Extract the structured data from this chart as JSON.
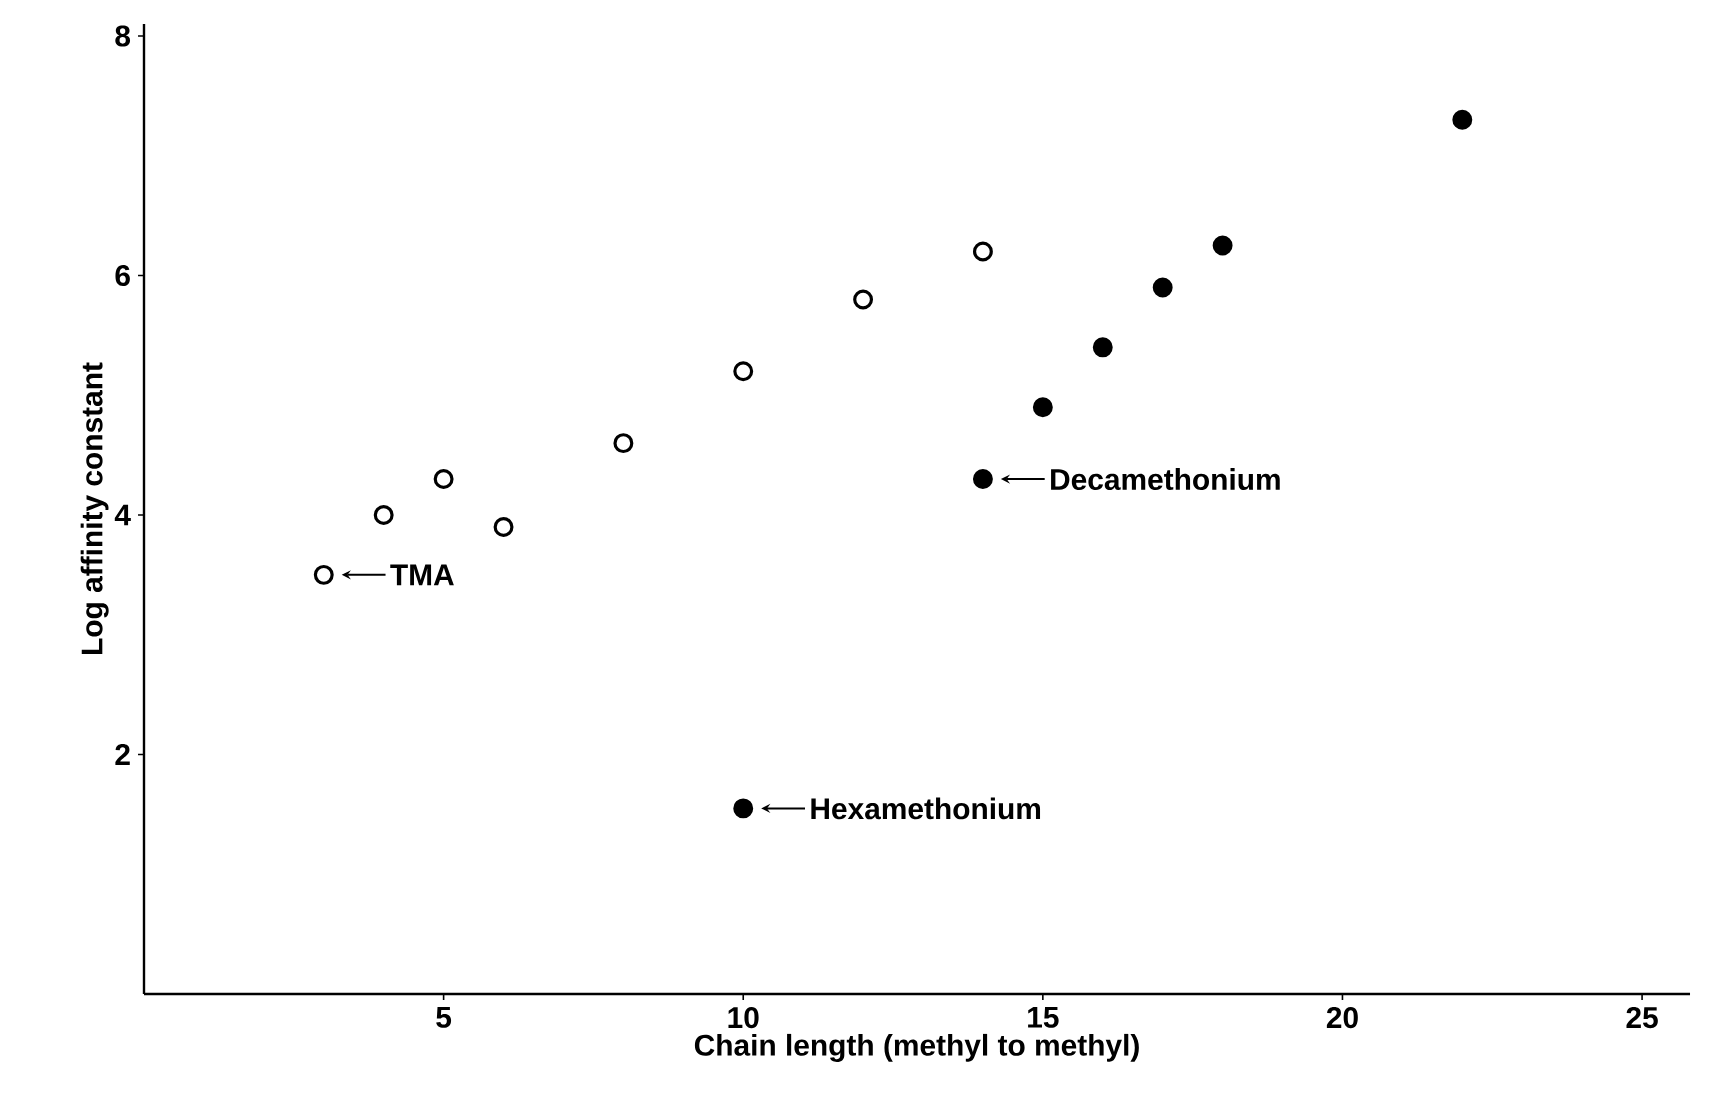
{
  "chart_data": {
    "type": "scatter",
    "xlabel": "Chain length  (methyl to methyl)",
    "ylabel": "Log affinity constant",
    "xlim": [
      0,
      25.8
    ],
    "ylim": [
      0,
      8.1
    ],
    "xticks": [
      5,
      10,
      15,
      20,
      25
    ],
    "yticks": [
      2,
      4,
      6,
      8
    ],
    "grid": false,
    "series": [
      {
        "color": "#000000",
        "x": [
          3,
          4,
          5,
          6,
          8,
          10,
          12,
          14
        ],
        "values": [
          3.5,
          4.0,
          4.3,
          3.9,
          4.6,
          5.2,
          5.8,
          6.2
        ]
      },
      {
        "color": "#000000",
        "x": [
          10,
          14,
          15,
          16,
          17,
          18,
          22
        ],
        "values": [
          1.55,
          4.3,
          4.9,
          5.4,
          5.9,
          6.25,
          7.3
        ]
      }
    ],
    "annotations": [
      {
        "text": "TMA",
        "x": 3,
        "y": 3.5
      },
      {
        "text": "Decamethonium",
        "x": 14,
        "y": 4.3
      },
      {
        "text": "Hexamethonium",
        "x": 10,
        "y": 1.55
      }
    ]
  }
}
